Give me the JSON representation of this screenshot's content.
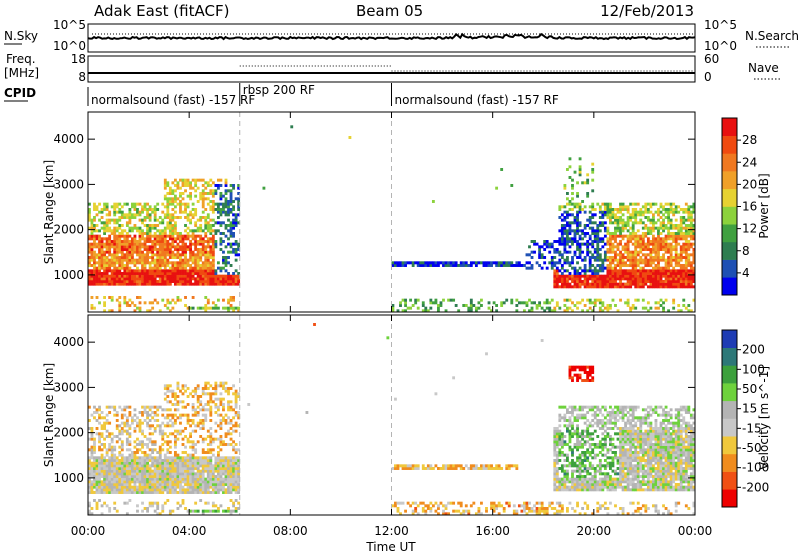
{
  "header": {
    "station": "Adak East (fitACF)",
    "beam": "Beam 05",
    "date": "12/Feb/2013"
  },
  "sky_panel": {
    "left_label": "N.Sky",
    "right_label": "N.Search",
    "left_ticks": [
      "10^5",
      "10^0"
    ],
    "right_ticks": [
      "10^5",
      "10^0"
    ]
  },
  "freq_panel": {
    "label": "Freq.",
    "unit": "[MHz]",
    "left_ticks": [
      "18",
      "8"
    ],
    "right_ticks": [
      "60",
      "0"
    ],
    "right_label": "Nave"
  },
  "cpid": {
    "label": "CPID",
    "segments": [
      {
        "name": "normalsound (fast) -157 RF",
        "start_ut": 0,
        "end_ut": 6
      },
      {
        "name": "rbsp 200 RF",
        "start_ut": 6,
        "end_ut": 12
      },
      {
        "name": "normalsound (fast) -157 RF",
        "start_ut": 12,
        "end_ut": 24
      }
    ]
  },
  "colors": {
    "power": [
      "#0000ee",
      "#1e50b4",
      "#2e7d50",
      "#40a040",
      "#8cd23c",
      "#e6d232",
      "#f0a028",
      "#f07820",
      "#f04a10",
      "#e81010"
    ],
    "velocity": [
      "#ee0000",
      "#f05014",
      "#f08c1e",
      "#f0c83c",
      "#c8c8c8",
      "#b4b4b4",
      "#6ed23c",
      "#3ca03c",
      "#2d7878",
      "#1e3cb4"
    ]
  },
  "chart_data": [
    {
      "type": "heatmap",
      "title": "Power",
      "xlabel": "Time UT",
      "ylabel": "Slant Range [km]",
      "x_range_hours": [
        0,
        24
      ],
      "x_tick_labels": [
        "00:00",
        "04:00",
        "08:00",
        "12:00",
        "16:00",
        "20:00",
        "00:00"
      ],
      "ylim": [
        180,
        4600
      ],
      "y_ticks": [
        1000,
        2000,
        3000,
        4000
      ],
      "colorbar": {
        "label": "Power [dB]",
        "ticks": [
          "4",
          "8",
          "12",
          "16",
          "20",
          "24",
          "28"
        ],
        "range": [
          0,
          30
        ]
      },
      "regions": [
        {
          "t0": 0.0,
          "t1": 6.0,
          "r0": 750,
          "r1": 1150,
          "level": 0.92,
          "density": 0.97
        },
        {
          "t0": 0.0,
          "t1": 5.5,
          "r0": 1150,
          "r1": 1500,
          "level": 0.7,
          "density": 0.85
        },
        {
          "t0": 0.0,
          "t1": 5.3,
          "r0": 1500,
          "r1": 1900,
          "level": 0.78,
          "density": 0.85
        },
        {
          "t0": 0.0,
          "t1": 5.0,
          "r0": 1900,
          "r1": 2600,
          "level": 0.5,
          "density": 0.55
        },
        {
          "t0": 3.0,
          "t1": 5.5,
          "r0": 2200,
          "r1": 3100,
          "level": 0.55,
          "density": 0.45
        },
        {
          "t0": 5.0,
          "t1": 6.0,
          "r0": 1000,
          "r1": 3000,
          "level": 0.22,
          "density": 0.45
        },
        {
          "t0": 0.0,
          "t1": 6.0,
          "r0": 180,
          "r1": 520,
          "level": 0.6,
          "density": 0.22
        },
        {
          "t0": 4.0,
          "t1": 6.0,
          "r0": 260,
          "r1": 320,
          "level": 0.4,
          "density": 0.95
        },
        {
          "t0": 12.0,
          "t1": 18.6,
          "r0": 180,
          "r1": 480,
          "level": 0.35,
          "density": 0.32
        },
        {
          "t0": 12.0,
          "t1": 17.3,
          "r0": 1180,
          "r1": 1280,
          "level": 0.12,
          "density": 0.9
        },
        {
          "t0": 17.3,
          "t1": 18.6,
          "r0": 1100,
          "r1": 1800,
          "level": 0.12,
          "density": 0.35
        },
        {
          "t0": 18.4,
          "t1": 24.0,
          "r0": 700,
          "r1": 1100,
          "level": 0.93,
          "density": 0.95
        },
        {
          "t0": 18.6,
          "t1": 24.0,
          "r0": 1100,
          "r1": 1900,
          "level": 0.72,
          "density": 0.8
        },
        {
          "t0": 18.6,
          "t1": 24.0,
          "r0": 1900,
          "r1": 2600,
          "level": 0.48,
          "density": 0.6
        },
        {
          "t0": 18.6,
          "t1": 20.5,
          "r0": 1000,
          "r1": 2400,
          "level": 0.15,
          "density": 0.55
        },
        {
          "t0": 18.8,
          "t1": 20.0,
          "r0": 2600,
          "r1": 3600,
          "level": 0.4,
          "density": 0.2
        },
        {
          "t0": 18.4,
          "t1": 24.0,
          "r0": 180,
          "r1": 500,
          "level": 0.5,
          "density": 0.25
        },
        {
          "t0": 7.9,
          "t1": 9.1,
          "r0": 2800,
          "r1": 4400,
          "level": 0.15,
          "density": 0.05
        },
        {
          "t0": 6.0,
          "t1": 18.0,
          "r0": 2400,
          "r1": 4200,
          "level": 0.4,
          "density": 0.003
        }
      ]
    },
    {
      "type": "heatmap",
      "title": "Velocity",
      "xlabel": "Time UT",
      "ylabel": "Slant Range [km]",
      "x_range_hours": [
        0,
        24
      ],
      "x_tick_labels": [
        "00:00",
        "04:00",
        "08:00",
        "12:00",
        "16:00",
        "20:00",
        "00:00"
      ],
      "ylim": [
        180,
        4600
      ],
      "y_ticks": [
        1000,
        2000,
        3000,
        4000
      ],
      "colorbar": {
        "label": "Velocity [m s^-1]",
        "ticks": [
          "200",
          "100",
          "50",
          "15",
          "-15",
          "-50",
          "-100",
          "-200"
        ],
        "range": [
          -250,
          250
        ]
      },
      "regions": [
        {
          "t0": 0.0,
          "t1": 6.0,
          "r0": 650,
          "r1": 1500,
          "level": 0.47,
          "density": 0.97
        },
        {
          "t0": 0.0,
          "t1": 5.5,
          "r0": 1500,
          "r1": 2600,
          "level": 0.4,
          "density": 0.45
        },
        {
          "t0": 3.0,
          "t1": 6.0,
          "r0": 1500,
          "r1": 3100,
          "level": 0.35,
          "density": 0.4
        },
        {
          "t0": 0.0,
          "t1": 6.0,
          "r0": 180,
          "r1": 520,
          "level": 0.45,
          "density": 0.2
        },
        {
          "t0": 4.0,
          "t1": 6.0,
          "r0": 240,
          "r1": 300,
          "level": 0.65,
          "density": 0.9
        },
        {
          "t0": 12.0,
          "t1": 17.0,
          "r0": 1180,
          "r1": 1300,
          "level": 0.35,
          "density": 0.8
        },
        {
          "t0": 12.0,
          "t1": 18.6,
          "r0": 180,
          "r1": 500,
          "level": 0.32,
          "density": 0.4
        },
        {
          "t0": 19.0,
          "t1": 20.0,
          "r0": 3100,
          "r1": 3500,
          "level": 0.04,
          "density": 0.8
        },
        {
          "t0": 18.4,
          "t1": 24.0,
          "r0": 700,
          "r1": 2100,
          "level": 0.5,
          "density": 0.92
        },
        {
          "t0": 18.6,
          "t1": 21.0,
          "r0": 1000,
          "r1": 2500,
          "level": 0.66,
          "density": 0.55
        },
        {
          "t0": 18.6,
          "t1": 24.0,
          "r0": 2100,
          "r1": 2600,
          "level": 0.55,
          "density": 0.55
        },
        {
          "t0": 18.4,
          "t1": 24.0,
          "r0": 180,
          "r1": 500,
          "level": 0.4,
          "density": 0.25
        },
        {
          "t0": 7.9,
          "t1": 9.1,
          "r0": 2800,
          "r1": 4400,
          "level": 0.3,
          "density": 0.05
        },
        {
          "t0": 6.0,
          "t1": 18.0,
          "r0": 2400,
          "r1": 4200,
          "level": 0.55,
          "density": 0.003
        }
      ]
    }
  ]
}
